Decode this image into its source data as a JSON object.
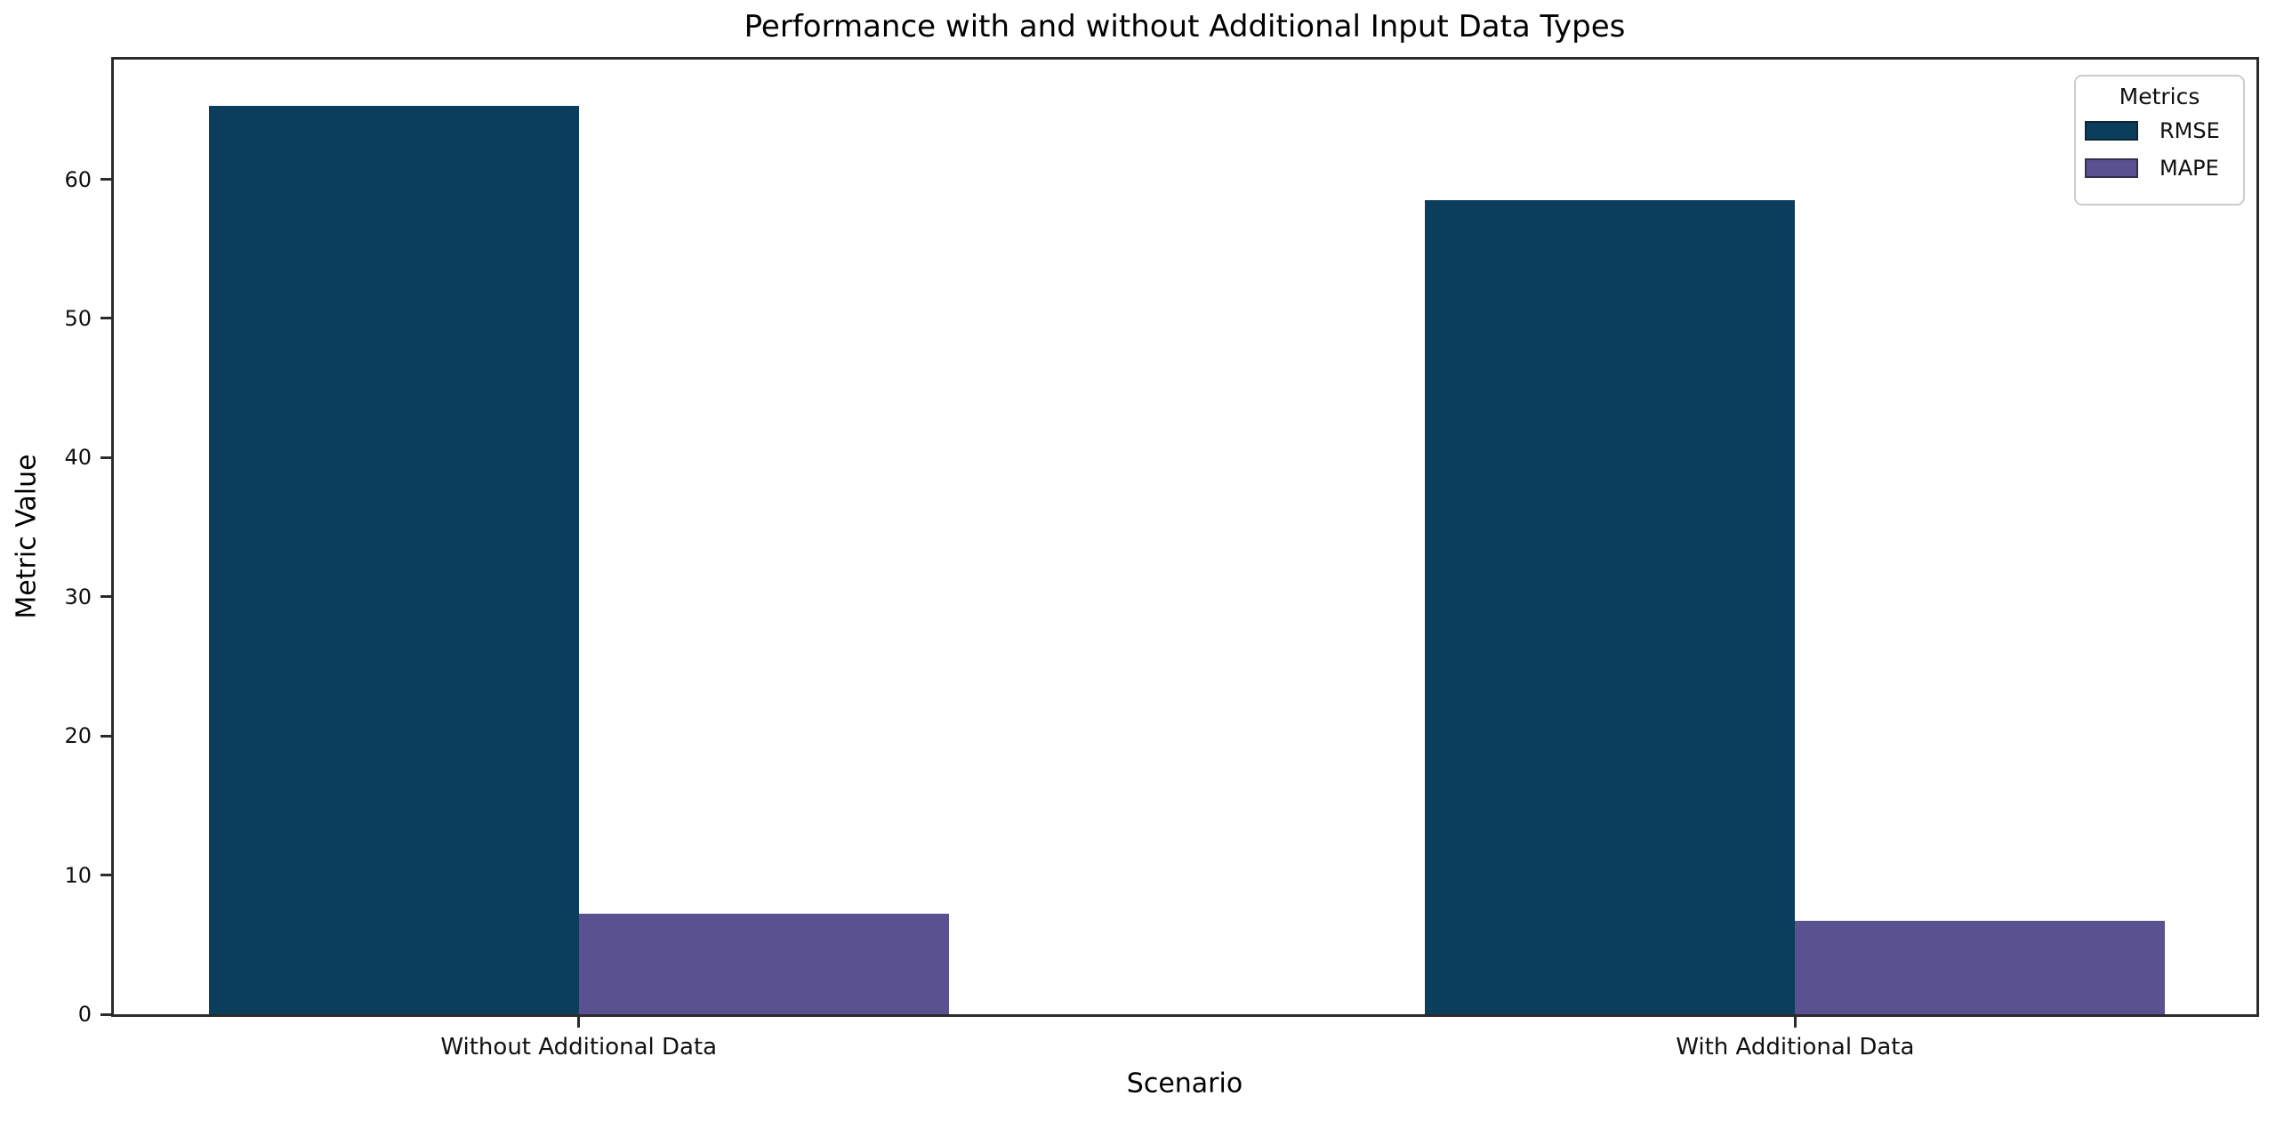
{
  "chart_data": {
    "type": "bar",
    "title": "Performance with and without Additional Input Data Types",
    "xlabel": "Scenario",
    "ylabel": "Metric Value",
    "categories": [
      "Without Additional Data",
      "With Additional Data"
    ],
    "series": [
      {
        "name": "RMSE",
        "color": "#0b3e5d",
        "values": [
          65.3,
          58.5
        ]
      },
      {
        "name": "MAPE",
        "color": "#5a5190",
        "values": [
          7.2,
          6.7
        ]
      }
    ],
    "ylim": [
      0,
      68.6
    ],
    "yticks": [
      0,
      10,
      20,
      30,
      40,
      50,
      60
    ],
    "grid": false,
    "legend_title": "Metrics",
    "legend_position": "upper right"
  },
  "colors": {
    "rmse": "#0b3e5d",
    "mape": "#5a5190",
    "spine": "#2b2b2b",
    "background": "#ffffff"
  }
}
